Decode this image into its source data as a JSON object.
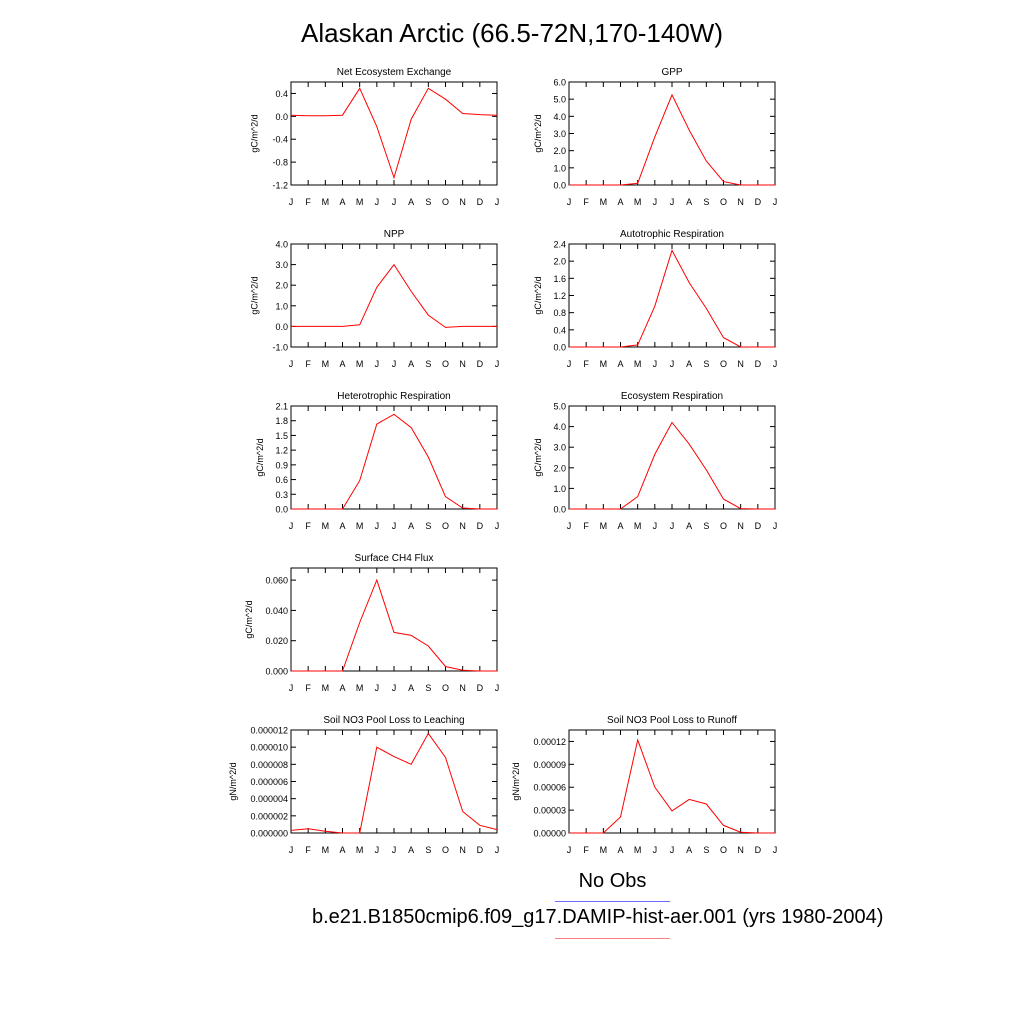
{
  "title": "Alaskan Arctic (66.5-72N,170-140W)",
  "colors": {
    "model": "#ff0000",
    "obs": "#6a6aff",
    "model_legend": "#ff8080",
    "axis": "#000000"
  },
  "legend": {
    "obs_label": "No Obs",
    "model_label": "b.e21.B1850cmip6.f09_g17.DAMIP-hist-aer.001 (yrs 1980-2004)"
  },
  "chart_data": [
    {
      "type": "line",
      "title": "Net Ecosystem Exchange",
      "ylabel": "gC/m^2/d",
      "x": [
        "J",
        "F",
        "M",
        "A",
        "M",
        "J",
        "J",
        "A",
        "S",
        "O",
        "N",
        "D",
        "J"
      ],
      "ylim": [
        -1.2,
        0.6
      ],
      "yticks": [
        "0.4",
        "0.0",
        "-0.4",
        "-0.8",
        "-1.2"
      ],
      "series": [
        {
          "values": [
            0.02,
            0.01,
            0.01,
            0.02,
            0.49,
            -0.18,
            -1.07,
            -0.05,
            0.49,
            0.3,
            0.05,
            0.03,
            0.02
          ]
        }
      ]
    },
    {
      "type": "line",
      "title": "GPP",
      "ylabel": "gC/m^2/d",
      "x": [
        "J",
        "F",
        "M",
        "A",
        "M",
        "J",
        "J",
        "A",
        "S",
        "O",
        "N",
        "D",
        "J"
      ],
      "ylim": [
        0.0,
        6.0
      ],
      "yticks": [
        "6.0",
        "5.0",
        "4.0",
        "3.0",
        "2.0",
        "1.0",
        "0.0"
      ],
      "series": [
        {
          "values": [
            0.0,
            0.0,
            0.0,
            0.0,
            0.1,
            2.8,
            5.25,
            3.2,
            1.4,
            0.2,
            0.0,
            0.0,
            0.0
          ]
        }
      ]
    },
    {
      "type": "line",
      "title": "NPP",
      "ylabel": "gC/m^2/d",
      "x": [
        "J",
        "F",
        "M",
        "A",
        "M",
        "J",
        "J",
        "A",
        "S",
        "O",
        "N",
        "D",
        "J"
      ],
      "ylim": [
        -1.0,
        4.0
      ],
      "yticks": [
        "4.0",
        "3.0",
        "2.0",
        "1.0",
        "0.0",
        "-1.0"
      ],
      "series": [
        {
          "values": [
            0.0,
            0.0,
            0.0,
            0.0,
            0.08,
            1.9,
            3.0,
            1.7,
            0.55,
            -0.05,
            0.0,
            0.0,
            0.0
          ]
        }
      ]
    },
    {
      "type": "line",
      "title": "Autotrophic Respiration",
      "ylabel": "gC/m^2/d",
      "x": [
        "J",
        "F",
        "M",
        "A",
        "M",
        "J",
        "J",
        "A",
        "S",
        "O",
        "N",
        "D",
        "J"
      ],
      "ylim": [
        0.0,
        2.4
      ],
      "yticks": [
        "2.4",
        "2.0",
        "1.6",
        "1.2",
        "0.8",
        "0.4",
        "0.0"
      ],
      "series": [
        {
          "values": [
            0.0,
            0.0,
            0.0,
            0.0,
            0.05,
            0.95,
            2.25,
            1.5,
            0.9,
            0.22,
            0.0,
            0.0,
            0.0
          ]
        }
      ]
    },
    {
      "type": "line",
      "title": "Heterotrophic Respiration",
      "ylabel": "gC/m^2/d",
      "x": [
        "J",
        "F",
        "M",
        "A",
        "M",
        "J",
        "J",
        "A",
        "S",
        "O",
        "N",
        "D",
        "J"
      ],
      "ylim": [
        0.0,
        2.1
      ],
      "yticks": [
        "2.1",
        "1.8",
        "1.5",
        "1.2",
        "0.9",
        "0.6",
        "0.3",
        "0.0"
      ],
      "series": [
        {
          "values": [
            0.0,
            0.0,
            0.0,
            0.0,
            0.58,
            1.73,
            1.93,
            1.66,
            1.06,
            0.25,
            0.02,
            0.0,
            0.0
          ]
        }
      ]
    },
    {
      "type": "line",
      "title": "Ecosystem Respiration",
      "ylabel": "gC/m^2/d",
      "x": [
        "J",
        "F",
        "M",
        "A",
        "M",
        "J",
        "J",
        "A",
        "S",
        "O",
        "N",
        "D",
        "J"
      ],
      "ylim": [
        0.0,
        5.0
      ],
      "yticks": [
        "5.0",
        "4.0",
        "3.0",
        "2.0",
        "1.0",
        "0.0"
      ],
      "series": [
        {
          "values": [
            0.0,
            0.0,
            0.0,
            0.0,
            0.6,
            2.65,
            4.2,
            3.15,
            1.9,
            0.48,
            0.02,
            0.0,
            0.0
          ]
        }
      ]
    },
    {
      "type": "line",
      "title": "Surface CH4 Flux",
      "ylabel": "gC/m^2/d",
      "x": [
        "J",
        "F",
        "M",
        "A",
        "M",
        "J",
        "J",
        "A",
        "S",
        "O",
        "N",
        "D",
        "J"
      ],
      "ylim": [
        0.0,
        0.068
      ],
      "yticks": [
        "0.060",
        "0.040",
        "0.020",
        "0.000"
      ],
      "series": [
        {
          "values": [
            0.0,
            0.0,
            0.0,
            0.0,
            0.032,
            0.06,
            0.0255,
            0.0235,
            0.0165,
            0.003,
            0.0005,
            0.0,
            0.0
          ]
        }
      ]
    },
    {
      "type": "line",
      "title": "Soil NO3 Pool Loss to Leaching",
      "ylabel": "gN/m^2/d",
      "x": [
        "J",
        "F",
        "M",
        "A",
        "M",
        "J",
        "J",
        "A",
        "S",
        "O",
        "N",
        "D",
        "J"
      ],
      "ylim": [
        0.0,
        1.2e-05
      ],
      "yticks": [
        "0.000012",
        "0.000010",
        "0.000008",
        "0.000006",
        "0.000004",
        "0.000002",
        "0.000000"
      ],
      "series": [
        {
          "values": [
            3e-07,
            5e-07,
            2e-07,
            0.0,
            0.0,
            1e-05,
            8.9e-06,
            8e-06,
            1.16e-05,
            8.8e-06,
            2.5e-06,
            9e-07,
            4e-07
          ]
        }
      ]
    },
    {
      "type": "line",
      "title": "Soil NO3 Pool Loss to Runoff",
      "ylabel": "gN/m^2/d",
      "x": [
        "J",
        "F",
        "M",
        "A",
        "M",
        "J",
        "J",
        "A",
        "S",
        "O",
        "N",
        "D",
        "J"
      ],
      "ylim": [
        0.0,
        0.000135
      ],
      "yticks": [
        "0.00012",
        "0.00009",
        "0.00006",
        "0.00003",
        "0.00000"
      ],
      "series": [
        {
          "values": [
            0.0,
            0.0,
            0.0,
            2.1e-05,
            0.000122,
            6e-05,
            2.9e-05,
            4.4e-05,
            3.8e-05,
            1e-05,
            1e-06,
            0.0,
            0.0
          ]
        }
      ]
    }
  ]
}
